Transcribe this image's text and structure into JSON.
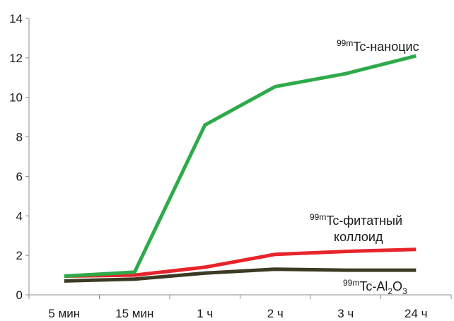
{
  "chart_data": {
    "type": "line",
    "categories": [
      "5 мин",
      "15 мин",
      "1 ч",
      "2 ч",
      "3 ч",
      "24 ч"
    ],
    "ylim": [
      0,
      14
    ],
    "yticks": [
      0,
      2,
      4,
      6,
      8,
      10,
      12,
      14
    ],
    "grid": false,
    "series": [
      {
        "name": "99mTc-наноцис",
        "color": "#2eaa4a",
        "values": [
          0.95,
          1.15,
          8.6,
          10.55,
          11.2,
          12.1
        ],
        "label": {
          "sup": "99m",
          "main": "Tc-наноцис"
        }
      },
      {
        "name": "99mTc-фитатный коллоид",
        "color": "#e8242b",
        "values": [
          0.95,
          1.0,
          1.4,
          2.05,
          2.2,
          2.3
        ],
        "label": {
          "sup": "99m",
          "main": "Tc-фитатный",
          "line2": "коллоид"
        }
      },
      {
        "name": "99mTc-Al2O3",
        "color": "#3d3a24",
        "values": [
          0.7,
          0.8,
          1.1,
          1.3,
          1.25,
          1.25
        ],
        "label": {
          "sup": "99m",
          "main": "Tc-Al",
          "sub1": "2",
          "mid": "O",
          "sub2": "3"
        }
      }
    ]
  }
}
